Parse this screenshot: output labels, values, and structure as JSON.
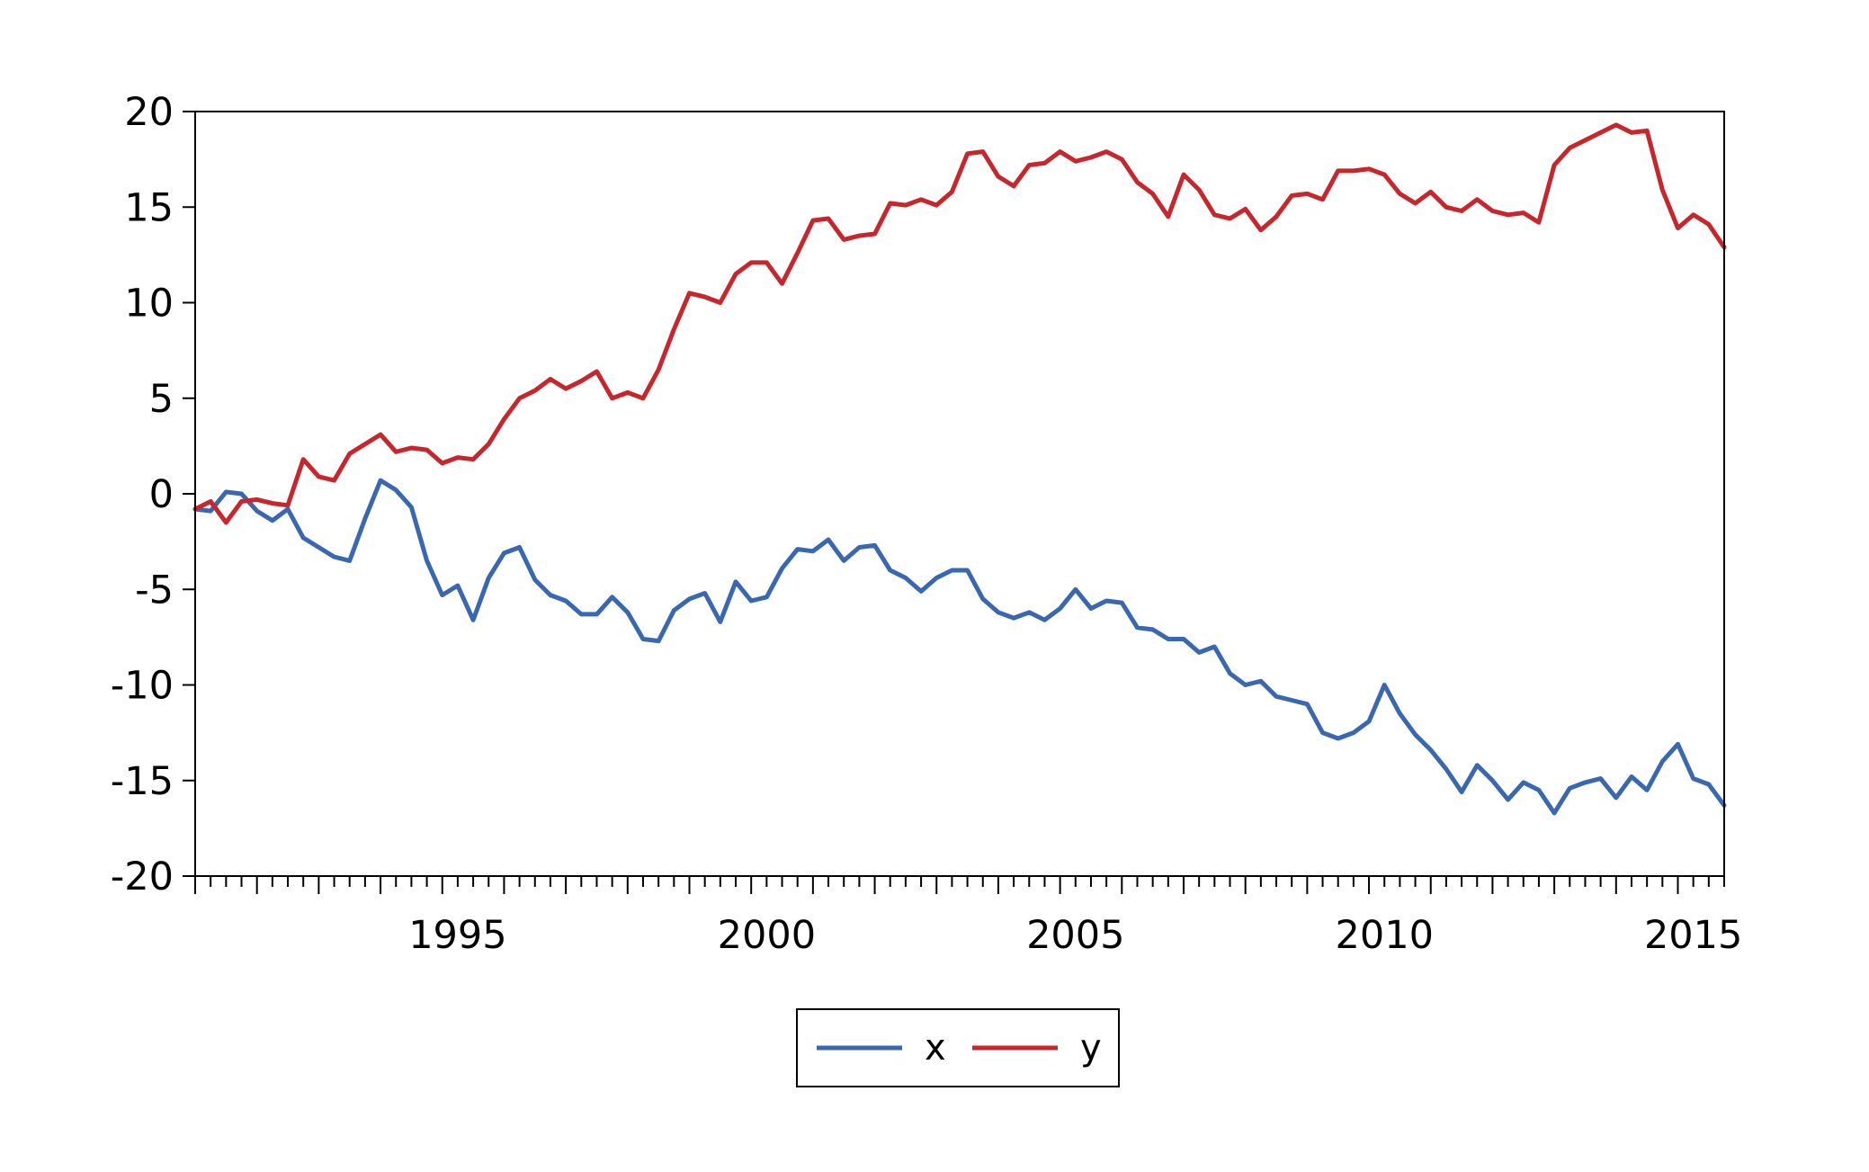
{
  "chart_data": {
    "type": "line",
    "title": "",
    "xlabel": "",
    "ylabel": "",
    "frequency": "quarterly",
    "xlim": [
      1991.0,
      2015.75
    ],
    "ylim": [
      -20,
      20
    ],
    "y_ticks": [
      20,
      15,
      10,
      5,
      0,
      -5,
      -10,
      -15,
      -20
    ],
    "y_tick_labels": [
      "20",
      "15",
      "10",
      "5",
      "0",
      "-5",
      "-10",
      "-15",
      "-20"
    ],
    "x_ticks": [
      1995,
      2000,
      2005,
      2010,
      2015
    ],
    "x_tick_labels": [
      "1995",
      "2000",
      "2005",
      "2010",
      "2015"
    ],
    "grid": false,
    "legend_position": "bottom-center",
    "x": [
      1991.0,
      1991.25,
      1991.5,
      1991.75,
      1992.0,
      1992.25,
      1992.5,
      1992.75,
      1993.0,
      1993.25,
      1993.5,
      1993.75,
      1994.0,
      1994.25,
      1994.5,
      1994.75,
      1995.0,
      1995.25,
      1995.5,
      1995.75,
      1996.0,
      1996.25,
      1996.5,
      1996.75,
      1997.0,
      1997.25,
      1997.5,
      1997.75,
      1998.0,
      1998.25,
      1998.5,
      1998.75,
      1999.0,
      1999.25,
      1999.5,
      1999.75,
      2000.0,
      2000.25,
      2000.5,
      2000.75,
      2001.0,
      2001.25,
      2001.5,
      2001.75,
      2002.0,
      2002.25,
      2002.5,
      2002.75,
      2003.0,
      2003.25,
      2003.5,
      2003.75,
      2004.0,
      2004.25,
      2004.5,
      2004.75,
      2005.0,
      2005.25,
      2005.5,
      2005.75,
      2006.0,
      2006.25,
      2006.5,
      2006.75,
      2007.0,
      2007.25,
      2007.5,
      2007.75,
      2008.0,
      2008.25,
      2008.5,
      2008.75,
      2009.0,
      2009.25,
      2009.5,
      2009.75,
      2010.0,
      2010.25,
      2010.5,
      2010.75,
      2011.0,
      2011.25,
      2011.5,
      2011.75,
      2012.0,
      2012.25,
      2012.5,
      2012.75,
      2013.0,
      2013.25,
      2013.5,
      2013.75,
      2014.0,
      2014.25,
      2014.5,
      2014.75,
      2015.0,
      2015.25,
      2015.5,
      2015.75
    ],
    "series": [
      {
        "name": "x",
        "color": "#3a68b0",
        "values": [
          -0.8,
          -0.9,
          0.1,
          0.0,
          -0.9,
          -1.4,
          -0.8,
          -2.3,
          -2.8,
          -3.3,
          -3.5,
          -1.3,
          0.7,
          0.2,
          -0.7,
          -3.5,
          -5.3,
          -4.8,
          -6.6,
          -4.4,
          -3.1,
          -2.8,
          -4.5,
          -5.3,
          -5.6,
          -6.3,
          -6.3,
          -5.4,
          -6.2,
          -7.6,
          -7.7,
          -6.1,
          -5.5,
          -5.2,
          -6.7,
          -4.6,
          -5.6,
          -5.4,
          -3.9,
          -2.9,
          -3.0,
          -2.4,
          -3.5,
          -2.8,
          -2.7,
          -4.0,
          -4.4,
          -5.1,
          -4.4,
          -4.0,
          -4.0,
          -5.5,
          -6.2,
          -6.5,
          -6.2,
          -6.6,
          -6.0,
          -5.0,
          -6.0,
          -5.6,
          -5.7,
          -7.0,
          -7.1,
          -7.6,
          -7.6,
          -8.3,
          -8.0,
          -9.4,
          -10.0,
          -9.8,
          -10.6,
          -10.8,
          -11.0,
          -12.5,
          -12.8,
          -12.5,
          -11.9,
          -10.0,
          -11.5,
          -12.6,
          -13.4,
          -14.4,
          -15.6,
          -14.2,
          -15.0,
          -16.0,
          -15.1,
          -15.5,
          -16.7,
          -15.4,
          -15.1,
          -14.9,
          -15.9,
          -14.8,
          -15.5,
          -14.0,
          -13.1,
          -14.9,
          -15.2,
          -16.3
        ]
      },
      {
        "name": "y",
        "color": "#c8262d",
        "values": [
          -0.8,
          -0.4,
          -1.5,
          -0.4,
          -0.3,
          -0.5,
          -0.6,
          1.8,
          0.9,
          0.7,
          2.1,
          2.6,
          3.1,
          2.2,
          2.4,
          2.3,
          1.6,
          1.9,
          1.8,
          2.6,
          3.9,
          5.0,
          5.4,
          6.0,
          5.5,
          5.9,
          6.4,
          5.0,
          5.3,
          5.0,
          6.5,
          8.6,
          10.5,
          10.3,
          10.0,
          11.5,
          12.1,
          12.1,
          11.0,
          12.6,
          14.3,
          14.4,
          13.3,
          13.5,
          13.6,
          15.2,
          15.1,
          15.4,
          15.1,
          15.8,
          17.8,
          17.9,
          16.6,
          16.1,
          17.2,
          17.3,
          17.9,
          17.4,
          17.6,
          17.9,
          17.5,
          16.3,
          15.7,
          14.5,
          16.7,
          15.9,
          14.6,
          14.4,
          14.9,
          13.8,
          14.5,
          15.6,
          15.7,
          15.4,
          16.9,
          16.9,
          17.0,
          16.7,
          15.7,
          15.2,
          15.8,
          15.0,
          14.8,
          15.4,
          14.8,
          14.6,
          14.7,
          14.2,
          17.2,
          18.1,
          18.5,
          18.9,
          19.3,
          18.9,
          19.0,
          15.9,
          13.9,
          14.6,
          14.1,
          12.9
        ]
      }
    ],
    "legend": {
      "entries": [
        "x",
        "y"
      ]
    }
  }
}
